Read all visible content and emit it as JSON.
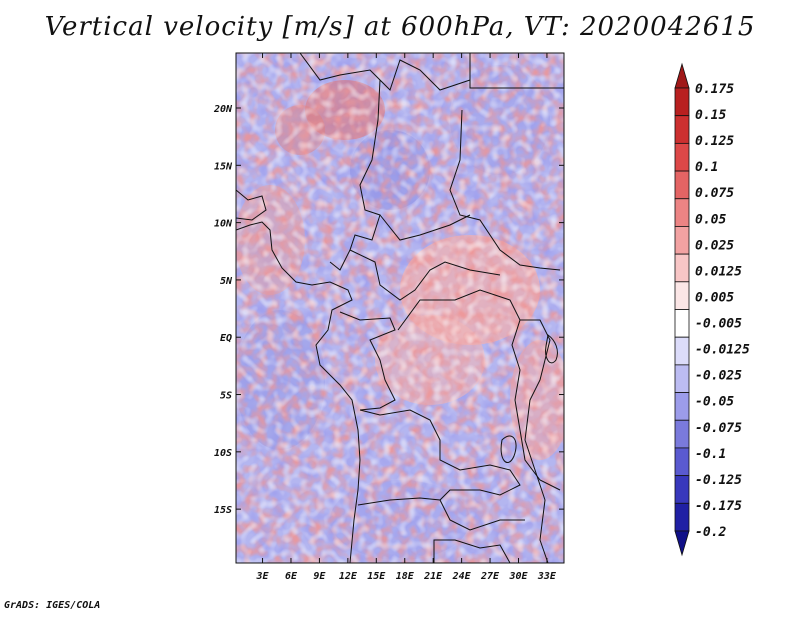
{
  "title": "Vertical velocity [m/s] at 600hPa, VT: 2020042615",
  "footer": "GrADS: IGES/COLA",
  "map": {
    "lat_ticks": [
      "20N",
      "15N",
      "10N",
      "5N",
      "EQ",
      "5S",
      "10S",
      "15S"
    ],
    "lat_values": [
      20,
      15,
      10,
      5,
      0,
      -5,
      -10,
      -15
    ],
    "lon_ticks": [
      "3E",
      "6E",
      "9E",
      "12E",
      "15E",
      "18E",
      "21E",
      "24E",
      "27E",
      "30E",
      "33E"
    ],
    "lon_values": [
      3,
      6,
      9,
      12,
      15,
      18,
      21,
      24,
      27,
      30,
      33
    ],
    "lon_range": [
      0.2,
      34.8
    ],
    "lat_range": [
      -19.7,
      24.8
    ]
  },
  "colorbar": {
    "labels": [
      "0.175",
      "0.15",
      "0.125",
      "0.1",
      "0.075",
      "0.05",
      "0.025",
      "0.0125",
      "0.005",
      "-0.005",
      "-0.0125",
      "-0.025",
      "-0.05",
      "-0.075",
      "-0.1",
      "-0.125",
      "-0.175",
      "-0.2"
    ],
    "colors": [
      "#a01818",
      "#b82020",
      "#cc3030",
      "#dd4848",
      "#e46464",
      "#ec8484",
      "#f2a2a2",
      "#f8c6c6",
      "#fbe6e6",
      "#ffffff",
      "#dcdcfa",
      "#bcbcf2",
      "#9c9cea",
      "#7a7adc",
      "#5a5ad0",
      "#3838bc",
      "#2020a4",
      "#101088"
    ]
  }
}
